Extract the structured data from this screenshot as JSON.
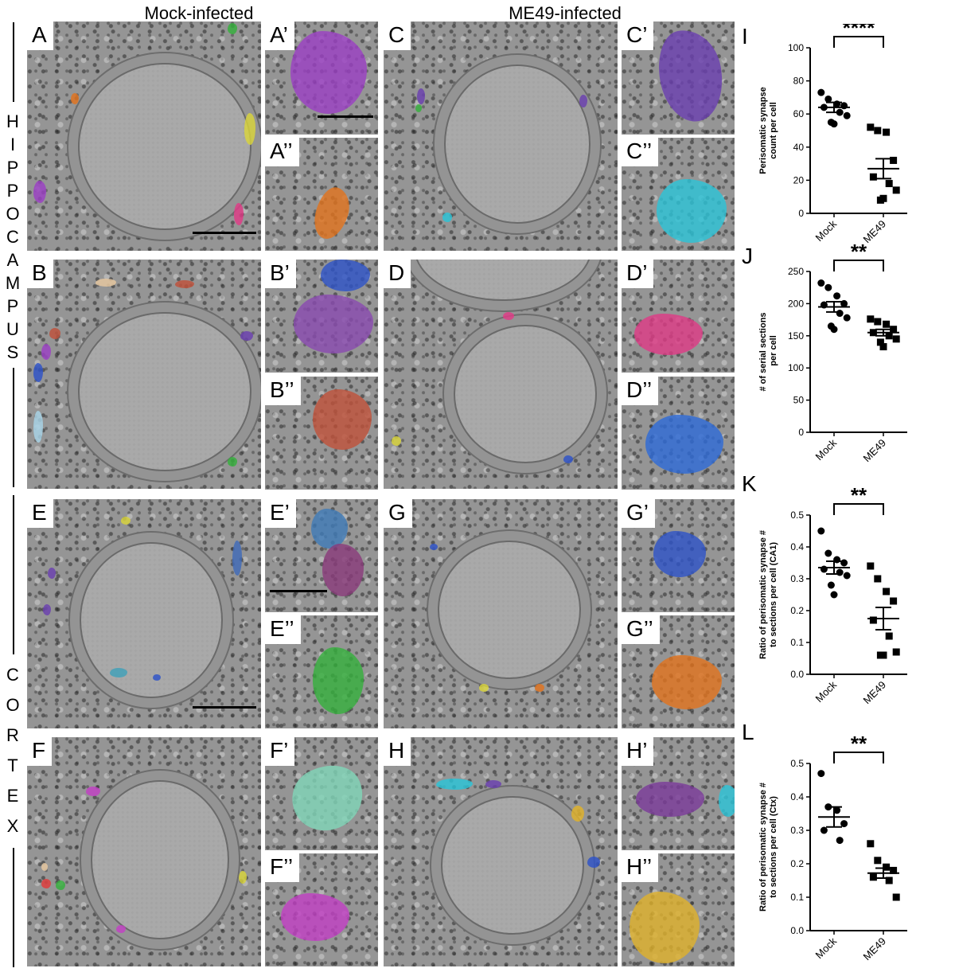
{
  "columns": {
    "mock": "Mock-infected",
    "me49": "ME49-infected"
  },
  "regions": {
    "hippocampus": [
      "H",
      "I",
      "P",
      "P",
      "O",
      "C",
      "A",
      "M",
      "P",
      "U",
      "S"
    ],
    "cortex": [
      "C",
      "O",
      "R",
      "T",
      "E",
      "X"
    ]
  },
  "panels": {
    "A": "A",
    "A1": "A’",
    "A2": "A’’",
    "B": "B",
    "B1": "B’",
    "B2": "B’’",
    "C": "C",
    "C1": "C’",
    "C2": "C’’",
    "D": "D",
    "D1": "D’",
    "D2": "D’’",
    "E": "E",
    "E1": "E’",
    "E2": "E’’",
    "F": "F",
    "F1": "F’",
    "F2": "F’’",
    "G": "G",
    "G1": "G’",
    "G2": "G’’",
    "H": "H",
    "H1": "H’",
    "H2": "H’’"
  },
  "colors": {
    "purple": "#9b3fc4",
    "violet": "#6a3fb0",
    "orange": "#e2731d",
    "cyan": "#2bc4d8",
    "blue": "#2d52c8",
    "pink": "#e03a86",
    "rust": "#c0513a",
    "green": "#35b03c",
    "yellow": "#d9d43a",
    "teal": "#3fa0b8",
    "mauve": "#8a3a7a",
    "mint": "#7fd6b8",
    "magenta": "#c23fc4",
    "gold": "#e0b22a"
  },
  "chart_data": [
    {
      "panel": "I",
      "type": "scatter",
      "significance": "****",
      "categories": [
        "Mock",
        "ME49"
      ],
      "ylabel": "Perisomatic synapse count per cell",
      "ylim": [
        0,
        100
      ],
      "yticks": [
        0,
        20,
        40,
        60,
        80,
        100
      ],
      "series": [
        {
          "category": "Mock",
          "marker": "circle",
          "mean": 64,
          "sem": 3,
          "values": [
            73,
            69,
            66,
            65,
            64,
            61,
            59,
            55,
            54
          ]
        },
        {
          "category": "ME49",
          "marker": "square",
          "mean": 27,
          "sem": 6,
          "values": [
            52,
            50,
            49,
            32,
            22,
            18,
            14,
            8,
            9
          ]
        }
      ]
    },
    {
      "panel": "J",
      "type": "scatter",
      "significance": "**",
      "categories": [
        "Mock",
        "ME49"
      ],
      "ylabel": "# of serial sections  per cell",
      "ylim": [
        0,
        250
      ],
      "yticks": [
        0,
        50,
        100,
        150,
        200,
        250
      ],
      "series": [
        {
          "category": "Mock",
          "marker": "circle",
          "mean": 195,
          "sem": 8,
          "values": [
            232,
            225,
            212,
            200,
            198,
            185,
            178,
            165,
            160
          ]
        },
        {
          "category": "ME49",
          "marker": "square",
          "mean": 155,
          "sem": 5,
          "values": [
            176,
            172,
            168,
            160,
            155,
            150,
            145,
            140,
            133
          ]
        }
      ]
    },
    {
      "panel": "K",
      "type": "scatter",
      "significance": "**",
      "categories": [
        "Mock",
        "ME49"
      ],
      "ylabel": "Ratio of perisomatic synapse # to sections per cell (CA1)",
      "ylim": [
        0,
        0.5
      ],
      "yticks": [
        "0.0",
        "0.1",
        "0.2",
        "0.3",
        "0.4",
        "0.5"
      ],
      "series": [
        {
          "category": "Mock",
          "marker": "circle",
          "mean": 0.335,
          "sem": 0.02,
          "values": [
            0.45,
            0.38,
            0.36,
            0.35,
            0.33,
            0.32,
            0.31,
            0.28,
            0.25
          ]
        },
        {
          "category": "ME49",
          "marker": "square",
          "mean": 0.175,
          "sem": 0.035,
          "values": [
            0.34,
            0.3,
            0.26,
            0.23,
            0.17,
            0.12,
            0.07,
            0.06,
            0.06
          ]
        }
      ]
    },
    {
      "panel": "L",
      "type": "scatter",
      "significance": "**",
      "categories": [
        "Mock",
        "ME49"
      ],
      "ylabel": "Ratio of perisomatic synapse # to sections per cell (Ctx)",
      "ylim": [
        0,
        0.5
      ],
      "yticks": [
        "0.0",
        "0.1",
        "0.2",
        "0.3",
        "0.4",
        "0.5"
      ],
      "series": [
        {
          "category": "Mock",
          "marker": "circle",
          "mean": 0.34,
          "sem": 0.03,
          "values": [
            0.47,
            0.37,
            0.36,
            0.32,
            0.3,
            0.27
          ]
        },
        {
          "category": "ME49",
          "marker": "square",
          "mean": 0.172,
          "sem": 0.015,
          "values": [
            0.26,
            0.21,
            0.19,
            0.18,
            0.16,
            0.15,
            0.1
          ]
        }
      ]
    }
  ]
}
